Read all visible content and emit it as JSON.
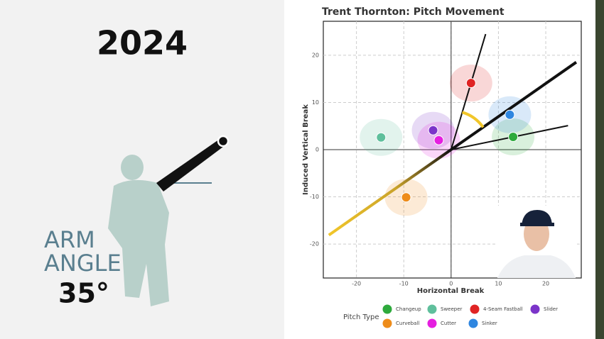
{
  "panel": {
    "year": "2024",
    "label_line1": "ARM",
    "label_line2": "ANGLE",
    "arm_angle": {
      "value": 35,
      "label": "35°"
    }
  },
  "chart_data": {
    "type": "scatter",
    "title": "Trent Thornton: Pitch Movement",
    "x_label": "Horizontal Break",
    "y_label": "Induced Vertical Break",
    "xlim": [
      -27,
      27.5
    ],
    "ylim": [
      -27.2,
      27.2
    ],
    "xticks": [
      -20,
      -10,
      0,
      10,
      20
    ],
    "yticks": [
      -20,
      -10,
      0,
      10,
      20
    ],
    "grid": true,
    "legend_title": "Pitch Type",
    "series": [
      {
        "name": "Changeup",
        "color": "#2eaa3c",
        "x": [
          13.1
        ],
        "values": [
          2.7
        ]
      },
      {
        "name": "Sweeper",
        "color": "#5fbf9c",
        "x": [
          -14.8
        ],
        "values": [
          2.6
        ]
      },
      {
        "name": "4-Seam Fastball",
        "color": "#e02424",
        "x": [
          4.2
        ],
        "values": [
          14.1
        ]
      },
      {
        "name": "Slider",
        "color": "#7b34c9",
        "x": [
          -3.8
        ],
        "values": [
          4.1
        ]
      },
      {
        "name": "Curveball",
        "color": "#ee8c1a",
        "x": [
          -9.5
        ],
        "values": [
          -10.1
        ]
      },
      {
        "name": "Cutter",
        "color": "#e51fe0",
        "x": [
          -2.6
        ],
        "values": [
          2.0
        ]
      },
      {
        "name": "Sinker",
        "color": "#2f86e0",
        "x": [
          12.4
        ],
        "values": [
          7.4
        ]
      }
    ]
  }
}
